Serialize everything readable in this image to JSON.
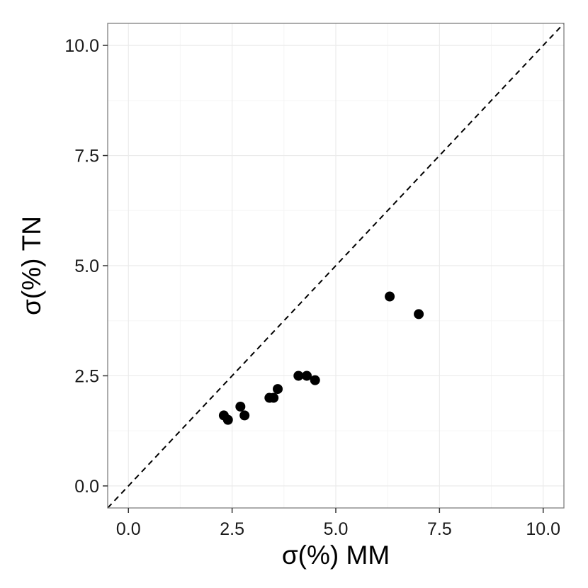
{
  "chart_data": {
    "type": "scatter",
    "title": "",
    "xlabel": "σ(%)  MM",
    "ylabel": "σ(%)  TN",
    "xlim": [
      -0.5,
      10.5
    ],
    "ylim": [
      -0.5,
      10.5
    ],
    "x_ticks": [
      0.0,
      2.5,
      5.0,
      7.5,
      10.0
    ],
    "y_ticks": [
      0.0,
      2.5,
      5.0,
      7.5,
      10.0
    ],
    "x_tick_labels": [
      "0.0",
      "2.5",
      "5.0",
      "7.5",
      "10.0"
    ],
    "y_tick_labels": [
      "0.0",
      "2.5",
      "5.0",
      "7.5",
      "10.0"
    ],
    "grid": true,
    "reference_line": {
      "type": "identity",
      "style": "dashed",
      "from": [
        -0.5,
        -0.5
      ],
      "to": [
        10.5,
        10.5
      ]
    },
    "points": [
      {
        "x": 2.3,
        "y": 1.6
      },
      {
        "x": 2.4,
        "y": 1.5
      },
      {
        "x": 2.7,
        "y": 1.8
      },
      {
        "x": 2.8,
        "y": 1.6
      },
      {
        "x": 3.4,
        "y": 2.0
      },
      {
        "x": 3.5,
        "y": 2.0
      },
      {
        "x": 3.6,
        "y": 2.2
      },
      {
        "x": 4.1,
        "y": 2.5
      },
      {
        "x": 4.3,
        "y": 2.5
      },
      {
        "x": 4.5,
        "y": 2.4
      },
      {
        "x": 6.3,
        "y": 4.3
      },
      {
        "x": 7.0,
        "y": 3.9
      }
    ],
    "colors": {
      "point": "#000000",
      "grid": "#ebebeb",
      "panel_border": "#7f7f7f",
      "background": "#ffffff"
    }
  }
}
